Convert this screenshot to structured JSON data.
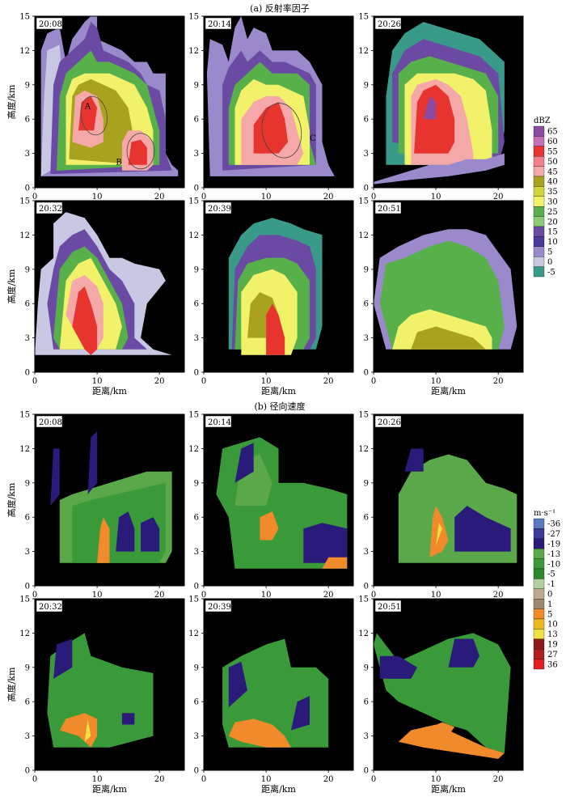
{
  "figure": {
    "section_a_title": "(a) 反射率因子",
    "section_b_title": "(b) 径向速度",
    "ylabel": "高度/km",
    "xlabel": "距离/km",
    "x_ticks": [
      "0",
      "10",
      "20"
    ],
    "y_ticks": [
      "0",
      "3",
      "6",
      "9",
      "12",
      "15"
    ],
    "panel_times": [
      "20:08",
      "20:14",
      "20:26",
      "20:32",
      "20:39",
      "20:51"
    ],
    "annotations": [
      "A",
      "B",
      "C"
    ]
  },
  "legend_a": {
    "unit": "dBZ",
    "labels": [
      "65",
      "60",
      "55",
      "50",
      "45",
      "40",
      "35",
      "30",
      "25",
      "20",
      "15",
      "10",
      "5",
      "0",
      "-5"
    ],
    "colors": [
      "#8a4aa0",
      "#c46fb8",
      "#e8342e",
      "#f0808a",
      "#f4a8a8",
      "#a8a21e",
      "#d2d23a",
      "#f2f26a",
      "#58b04a",
      "#8ccc72",
      "#6a4aa2",
      "#4a3a9a",
      "#9a8acc",
      "#c8c8e4",
      "#3a9a8a"
    ]
  },
  "legend_b": {
    "unit": "m·s⁻¹",
    "labels": [
      "-36",
      "-27",
      "-19",
      "-13",
      "-10",
      "-5",
      "-1",
      "0",
      "1",
      "5",
      "10",
      "13",
      "19",
      "27",
      "36"
    ],
    "colors": [
      "#5a7ac0",
      "#3a3a9a",
      "#2a1a7a",
      "#5aa84a",
      "#3a9a3a",
      "#2a8a2a",
      "#b0d0a0",
      "#c0a890",
      "#a08870",
      "#f08a2a",
      "#f0b820",
      "#f0e040",
      "#8a1a1a",
      "#b02020",
      "#e02020"
    ]
  },
  "chart_data": [
    {
      "type": "heatmap",
      "group": "reflectivity",
      "time": "20:08",
      "xlim": [
        0,
        24
      ],
      "ylim": [
        0,
        15
      ],
      "cores": [
        [
          8,
          6.5,
          55
        ],
        [
          17,
          2.5,
          55
        ]
      ]
    },
    {
      "type": "heatmap",
      "group": "reflectivity",
      "time": "20:14",
      "xlim": [
        0,
        24
      ],
      "ylim": [
        0,
        15
      ],
      "cores": [
        [
          12,
          4.5,
          55
        ]
      ]
    },
    {
      "type": "heatmap",
      "group": "reflectivity",
      "time": "20:26",
      "xlim": [
        0,
        24
      ],
      "ylim": [
        0,
        15
      ],
      "cores": [
        [
          10,
          6,
          65
        ]
      ]
    },
    {
      "type": "heatmap",
      "group": "reflectivity",
      "time": "20:32",
      "xlim": [
        0,
        24
      ],
      "ylim": [
        0,
        15
      ],
      "cores": [
        [
          9,
          5,
          55
        ]
      ]
    },
    {
      "type": "heatmap",
      "group": "reflectivity",
      "time": "20:39",
      "xlim": [
        0,
        24
      ],
      "ylim": [
        0,
        15
      ],
      "cores": [
        [
          12,
          3,
          55
        ]
      ]
    },
    {
      "type": "heatmap",
      "group": "reflectivity",
      "time": "20:51",
      "xlim": [
        0,
        24
      ],
      "ylim": [
        0,
        15
      ],
      "cores": [
        [
          10,
          3,
          40
        ]
      ]
    },
    {
      "type": "heatmap",
      "group": "radial_velocity",
      "time": "20:08",
      "xlim": [
        0,
        24
      ],
      "ylim": [
        0,
        15
      ]
    },
    {
      "type": "heatmap",
      "group": "radial_velocity",
      "time": "20:14",
      "xlim": [
        0,
        24
      ],
      "ylim": [
        0,
        15
      ]
    },
    {
      "type": "heatmap",
      "group": "radial_velocity",
      "time": "20:26",
      "xlim": [
        0,
        24
      ],
      "ylim": [
        0,
        15
      ]
    },
    {
      "type": "heatmap",
      "group": "radial_velocity",
      "time": "20:32",
      "xlim": [
        0,
        24
      ],
      "ylim": [
        0,
        15
      ]
    },
    {
      "type": "heatmap",
      "group": "radial_velocity",
      "time": "20:39",
      "xlim": [
        0,
        24
      ],
      "ylim": [
        0,
        15
      ]
    },
    {
      "type": "heatmap",
      "group": "radial_velocity",
      "time": "20:51",
      "xlim": [
        0,
        24
      ],
      "ylim": [
        0,
        15
      ]
    }
  ]
}
